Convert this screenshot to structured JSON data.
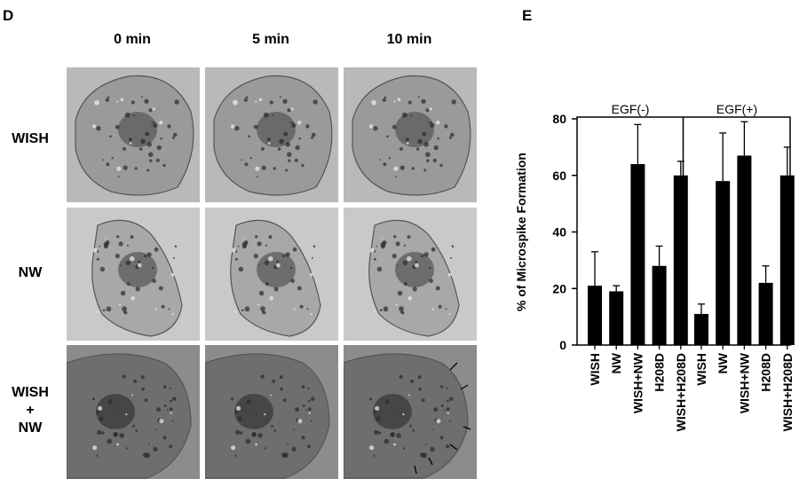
{
  "panel_d": {
    "letter": "D",
    "columns": [
      "0 min",
      "5 min",
      "10 min"
    ],
    "rows": [
      {
        "lines": [
          "WISH"
        ]
      },
      {
        "lines": [
          "NW"
        ]
      },
      {
        "lines": [
          "WISH",
          "+",
          "NW"
        ]
      }
    ]
  },
  "panel_e": {
    "letter": "E"
  },
  "chart_data": {
    "type": "bar",
    "ylabel": "% of Microspike Formation",
    "ylim": [
      0,
      80
    ],
    "yticks": [
      0,
      20,
      40,
      60,
      80
    ],
    "groups": [
      {
        "name": "EGF(-)",
        "categories": [
          "WISH",
          "NW",
          "WISH+NW",
          "H208D",
          "WISH+H208D"
        ],
        "values": [
          21,
          19,
          64,
          28,
          60
        ],
        "errors": [
          12,
          2,
          14,
          7,
          5
        ]
      },
      {
        "name": "EGF(+)",
        "categories": [
          "WISH",
          "NW",
          "WISH+NW",
          "H208D",
          "WISH+H208D"
        ],
        "values": [
          11,
          58,
          67,
          22,
          60
        ],
        "errors": [
          3.5,
          17,
          12,
          6,
          10
        ]
      }
    ],
    "bar_color": "#000000",
    "grid": false
  }
}
